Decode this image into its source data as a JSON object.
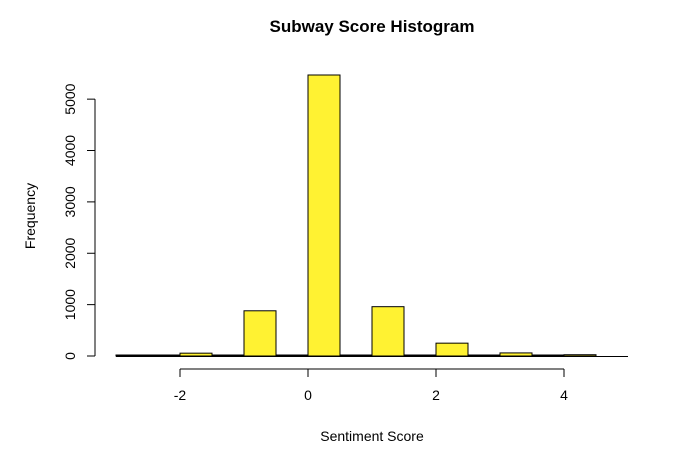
{
  "chart_data": {
    "type": "bar",
    "title": "Subway Score Histogram",
    "xlabel": "Sentiment Score",
    "ylabel": "Frequency",
    "bins": [
      {
        "x0": -3.0,
        "x1": -2.5,
        "count": 10
      },
      {
        "x0": -2.5,
        "x1": -2.0,
        "count": 0
      },
      {
        "x0": -2.0,
        "x1": -1.5,
        "count": 55
      },
      {
        "x0": -1.5,
        "x1": -1.0,
        "count": 0
      },
      {
        "x0": -1.0,
        "x1": -0.5,
        "count": 880
      },
      {
        "x0": -0.5,
        "x1": 0.0,
        "count": 0
      },
      {
        "x0": 0.0,
        "x1": 0.5,
        "count": 5470
      },
      {
        "x0": 0.5,
        "x1": 1.0,
        "count": 0
      },
      {
        "x0": 1.0,
        "x1": 1.5,
        "count": 960
      },
      {
        "x0": 1.5,
        "x1": 2.0,
        "count": 0
      },
      {
        "x0": 2.0,
        "x1": 2.5,
        "count": 250
      },
      {
        "x0": 2.5,
        "x1": 3.0,
        "count": 0
      },
      {
        "x0": 3.0,
        "x1": 3.5,
        "count": 60
      },
      {
        "x0": 3.5,
        "x1": 4.0,
        "count": 0
      },
      {
        "x0": 4.0,
        "x1": 4.5,
        "count": 25
      }
    ],
    "xlim": [
      -3,
      5
    ],
    "ylim": [
      0,
      5470
    ],
    "x_ticks": [
      -2,
      0,
      2,
      4
    ],
    "x_tick_labels": [
      "-2",
      "0",
      "2",
      "4"
    ],
    "y_ticks": [
      0,
      1000,
      2000,
      3000,
      4000,
      5000
    ],
    "y_tick_labels": [
      "0",
      "1000",
      "2000",
      "3000",
      "4000",
      "5000"
    ],
    "grid": false,
    "bar_color": "#FFF232",
    "edge_color": "#000000"
  }
}
